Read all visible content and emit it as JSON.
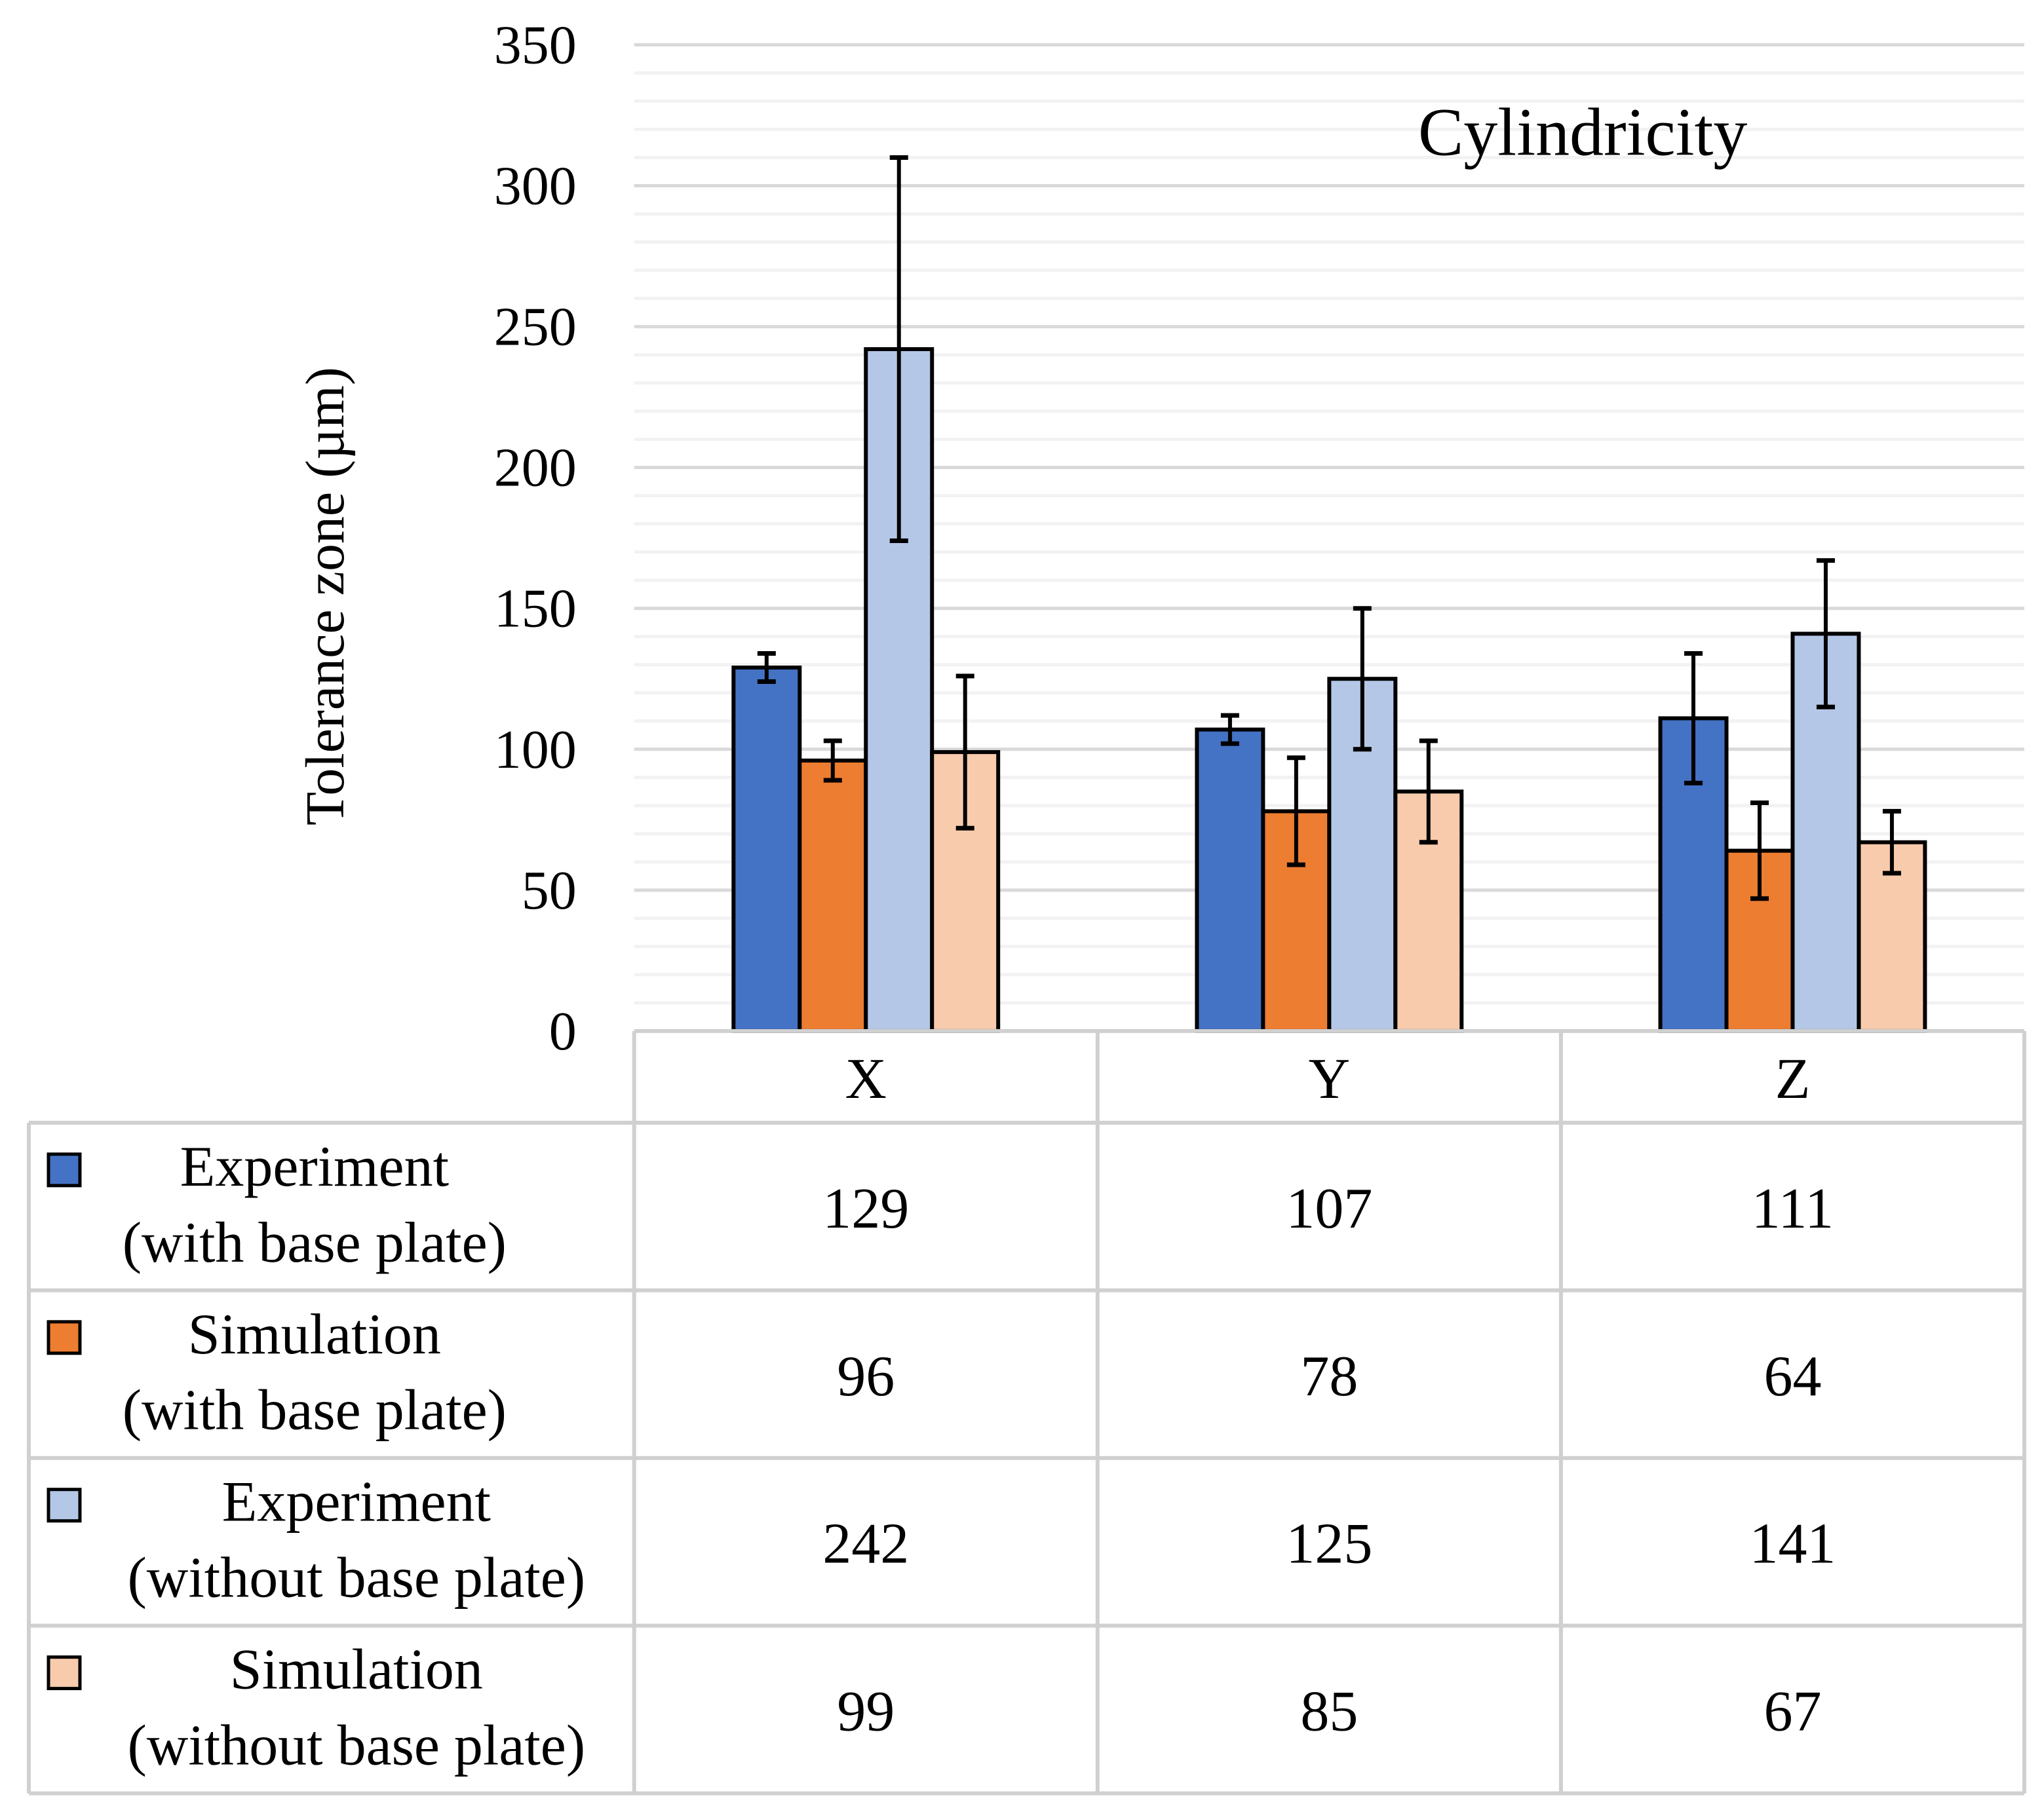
{
  "chart_data": {
    "type": "bar",
    "title": "Cylindricity",
    "xlabel": "",
    "ylabel": "Tolerance zone (µm)",
    "ylim": [
      0,
      350
    ],
    "yticks": [
      0,
      50,
      100,
      150,
      200,
      250,
      300,
      350
    ],
    "grid": {
      "major_step": 50,
      "minor_step": 10
    },
    "categories": [
      "X",
      "Y",
      "Z"
    ],
    "legend_placement": "data-table",
    "series": [
      {
        "name": "Experiment\n(with base plate)",
        "lines": [
          "Experiment",
          "(with base plate)"
        ],
        "color": "#4472C4",
        "values": [
          129,
          107,
          111
        ],
        "errors": [
          5,
          5,
          23
        ]
      },
      {
        "name": "Simulation\n(with base plate)",
        "lines": [
          "Simulation",
          "(with base plate)"
        ],
        "color": "#ED7D31",
        "values": [
          96,
          78,
          64
        ],
        "errors": [
          7,
          19,
          17
        ]
      },
      {
        "name": "Experiment\n(without base plate)",
        "lines": [
          "Experiment",
          "(without base plate)"
        ],
        "color": "#B4C7E7",
        "values": [
          242,
          125,
          141
        ],
        "errors": [
          68,
          25,
          26
        ]
      },
      {
        "name": "Simulation\n(without base plate)",
        "lines": [
          "Simulation",
          "(without base plate)"
        ],
        "color": "#F8CBAD",
        "values": [
          99,
          85,
          67
        ],
        "errors": [
          27,
          18,
          11
        ]
      }
    ]
  }
}
